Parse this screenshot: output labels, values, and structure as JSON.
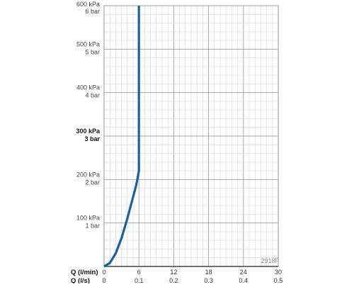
{
  "chart_data": {
    "type": "line",
    "x_label_lmin": "Q (l/min)",
    "x_label_ls": "Q (l/s)",
    "x_ticks_lmin": [
      "0",
      "6",
      "12",
      "18",
      "24",
      "30"
    ],
    "x_ticks_ls": [
      "0",
      "0.1",
      "0.2",
      "0.3",
      "0.4",
      "0.5"
    ],
    "xlim": [
      0,
      30
    ],
    "ylim": [
      0,
      600
    ],
    "y_ticks": [
      {
        "value": 100,
        "kpa": "100 kPa",
        "bar": "1 bar",
        "bold": false
      },
      {
        "value": 200,
        "kpa": "200 kPa",
        "bar": "2 bar",
        "bold": false
      },
      {
        "value": 300,
        "kpa": "300 kPa",
        "bar": "3 bar",
        "bold": true
      },
      {
        "value": 400,
        "kpa": "400 kPa",
        "bar": "4 bar",
        "bold": false
      },
      {
        "value": 500,
        "kpa": "500 kPa",
        "bar": "5 bar",
        "bold": false
      },
      {
        "value": 600,
        "kpa": "600 kPa",
        "bar": "6 bar",
        "bold": false
      }
    ],
    "grid": true,
    "code": "2918F",
    "series": [
      {
        "color": "#1a5f9e",
        "x": [
          0,
          1.0,
          2.0,
          3.0,
          4.0,
          5.0,
          5.5,
          5.8,
          6.0,
          6.0,
          6.0
        ],
        "y": [
          0,
          8,
          30,
          65,
          110,
          160,
          185,
          205,
          220,
          300,
          600
        ]
      }
    ]
  }
}
